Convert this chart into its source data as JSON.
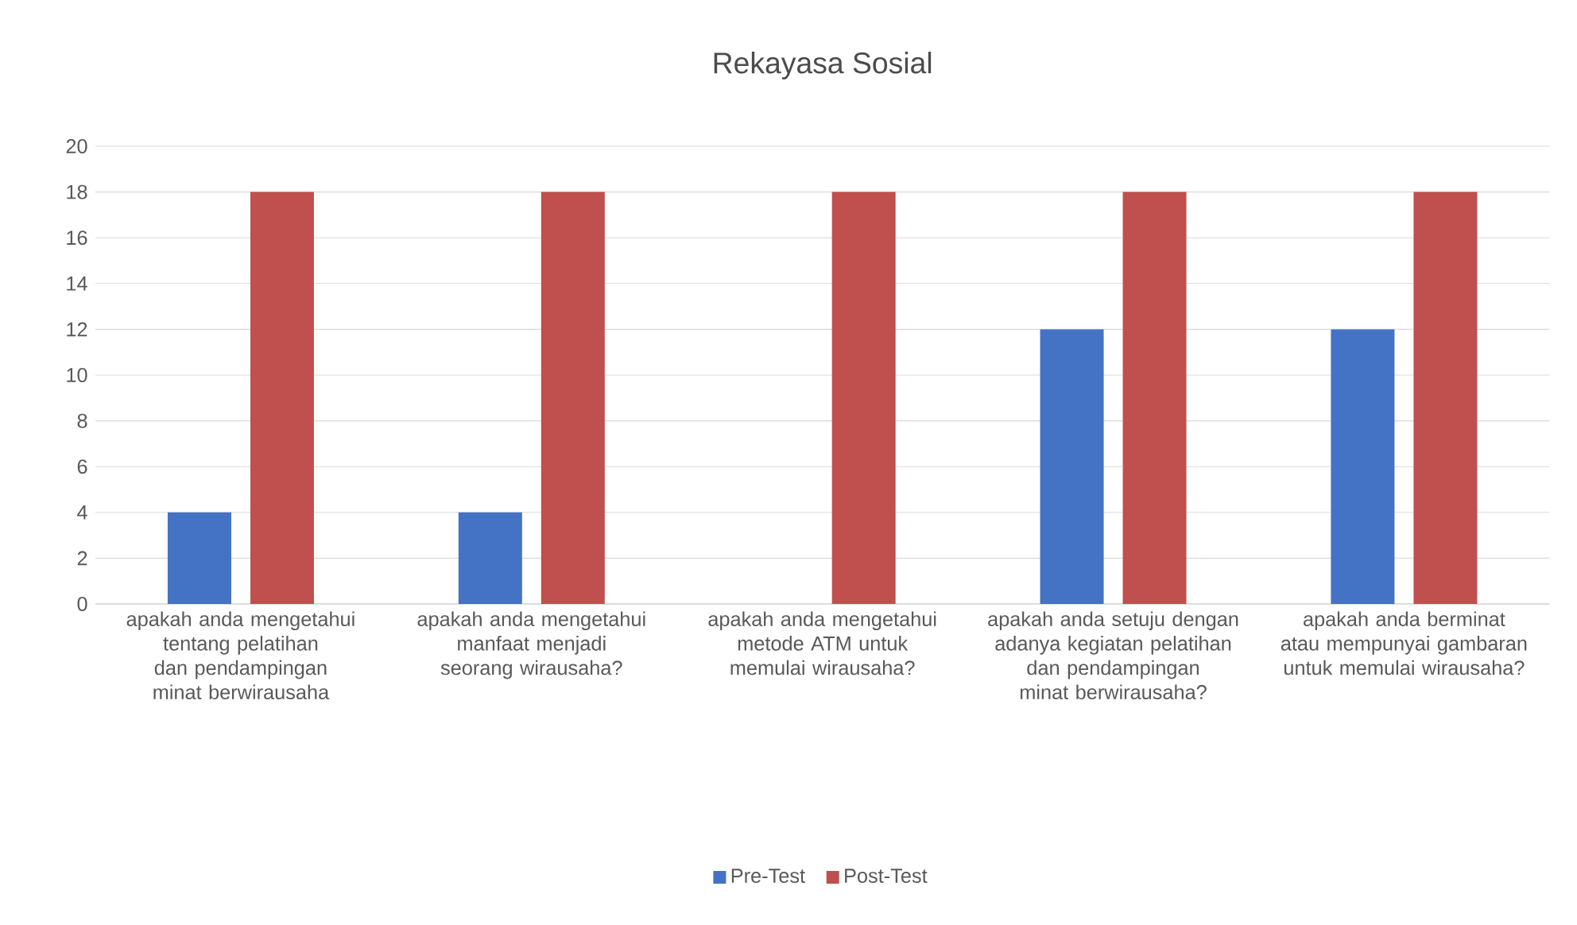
{
  "chart_data": {
    "type": "bar",
    "title": "Rekayasa Sosial",
    "categories": [
      "apakah anda mengetahui tentang pelatihan dan pendampingan minat berwirausaha",
      "apakah anda mengetahui manfaat menjadi seorang wirausaha?",
      "apakah anda mengetahui metode ATM untuk memulai wirausaha?",
      "apakah anda setuju dengan adanya kegiatan pelatihan dan pendampingan minat berwirausaha?",
      "apakah anda berminat atau mempunyai gambaran untuk memulai wirausaha?"
    ],
    "series": [
      {
        "name": "Pre-Test",
        "color": "#4472c4",
        "values": [
          4,
          4,
          0,
          12,
          12
        ]
      },
      {
        "name": "Post-Test",
        "color": "#c0504d",
        "values": [
          18,
          18,
          18,
          18,
          18
        ]
      }
    ],
    "ylim": [
      0,
      20
    ],
    "yticks": [
      0,
      2,
      4,
      6,
      8,
      10,
      12,
      14,
      16,
      18,
      20
    ],
    "grid": "y",
    "legend": "bottom"
  }
}
